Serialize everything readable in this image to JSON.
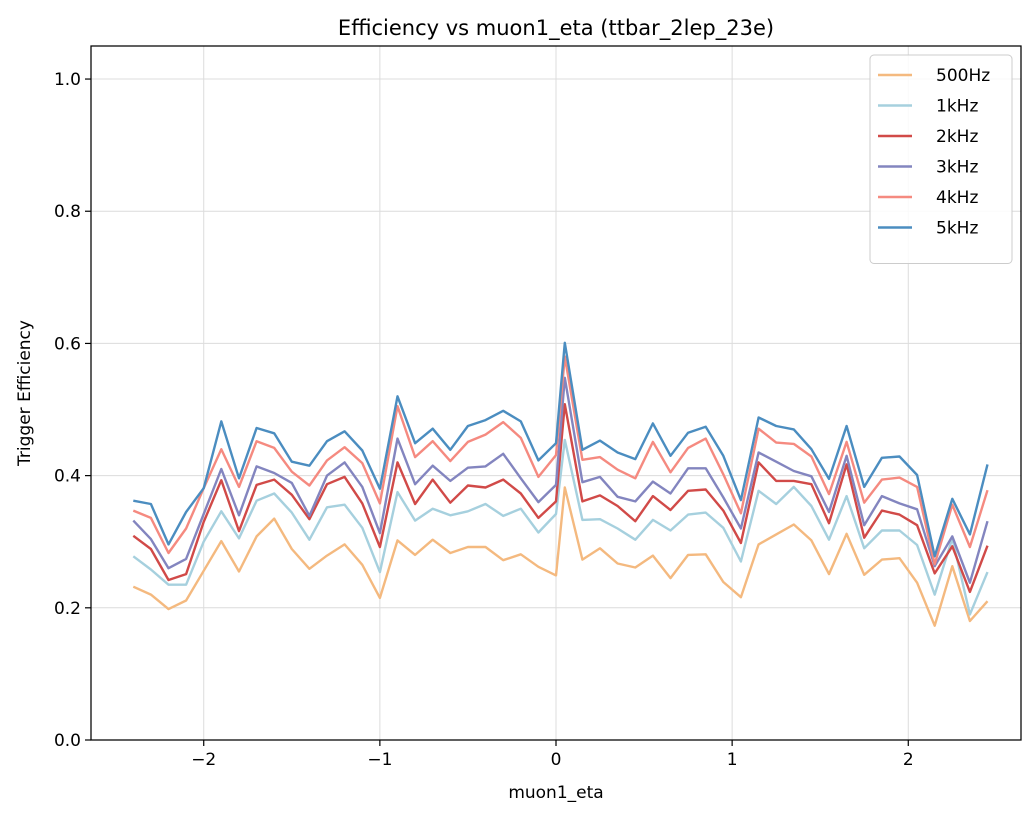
{
  "chart_data": {
    "type": "line",
    "title": "Efficiency vs muon1_eta (ttbar_2lep_23e)",
    "xlabel": "muon1_eta",
    "ylabel": "Trigger Efficiency",
    "xlim": [
      -2.64,
      2.64
    ],
    "ylim": [
      0,
      1.05
    ],
    "xticks": [
      -2,
      -1,
      0,
      1,
      2
    ],
    "xtick_labels": [
      "−2",
      "−1",
      "0",
      "1",
      "2"
    ],
    "yticks": [
      0.0,
      0.2,
      0.4,
      0.6,
      0.8,
      1.0
    ],
    "ytick_labels": [
      "0.0",
      "0.2",
      "0.4",
      "0.6",
      "0.8",
      "1.0"
    ],
    "grid": true,
    "legend_position": "top-right",
    "x": [
      -2.4,
      -2.3,
      -2.2,
      -2.1,
      -2.0,
      -1.9,
      -1.8,
      -1.7,
      -1.6,
      -1.5,
      -1.4,
      -1.3,
      -1.2,
      -1.1,
      -1.0,
      -0.9,
      -0.8,
      -0.7,
      -0.6,
      -0.5,
      -0.4,
      -0.3,
      -0.2,
      -0.1,
      0.0,
      0.05,
      0.15,
      0.25,
      0.35,
      0.45,
      0.55,
      0.65,
      0.75,
      0.85,
      0.95,
      1.05,
      1.15,
      1.25,
      1.35,
      1.45,
      1.55,
      1.65,
      1.75,
      1.85,
      1.95,
      2.05,
      2.15,
      2.25,
      2.35,
      2.45
    ],
    "series": [
      {
        "name": "500Hz",
        "color": "#f4b97f",
        "values": [
          0.232,
          0.22,
          0.198,
          0.211,
          0.256,
          0.301,
          0.255,
          0.308,
          0.335,
          0.289,
          0.259,
          0.279,
          0.296,
          0.265,
          0.215,
          0.302,
          0.28,
          0.303,
          0.283,
          0.292,
          0.292,
          0.272,
          0.281,
          0.262,
          0.249,
          0.382,
          0.273,
          0.29,
          0.267,
          0.261,
          0.279,
          0.245,
          0.28,
          0.281,
          0.239,
          0.216,
          0.296,
          0.311,
          0.326,
          0.302,
          0.251,
          0.312,
          0.25,
          0.273,
          0.275,
          0.238,
          0.173,
          0.263,
          0.18,
          0.21
        ]
      },
      {
        "name": "1kHz",
        "color": "#a6d0de",
        "values": [
          0.278,
          0.258,
          0.235,
          0.235,
          0.3,
          0.346,
          0.305,
          0.362,
          0.373,
          0.344,
          0.303,
          0.352,
          0.356,
          0.321,
          0.254,
          0.375,
          0.332,
          0.35,
          0.34,
          0.346,
          0.357,
          0.339,
          0.35,
          0.314,
          0.342,
          0.454,
          0.333,
          0.334,
          0.32,
          0.303,
          0.333,
          0.317,
          0.341,
          0.344,
          0.321,
          0.27,
          0.377,
          0.357,
          0.383,
          0.354,
          0.303,
          0.369,
          0.29,
          0.317,
          0.317,
          0.295,
          0.22,
          0.305,
          0.19,
          0.254
        ]
      },
      {
        "name": "2kHz",
        "color": "#d14a48",
        "values": [
          0.309,
          0.289,
          0.242,
          0.251,
          0.33,
          0.393,
          0.316,
          0.386,
          0.394,
          0.371,
          0.334,
          0.387,
          0.398,
          0.358,
          0.292,
          0.42,
          0.357,
          0.394,
          0.359,
          0.385,
          0.382,
          0.394,
          0.373,
          0.336,
          0.361,
          0.508,
          0.361,
          0.37,
          0.354,
          0.331,
          0.369,
          0.348,
          0.377,
          0.379,
          0.347,
          0.298,
          0.42,
          0.392,
          0.392,
          0.387,
          0.328,
          0.417,
          0.306,
          0.347,
          0.341,
          0.325,
          0.252,
          0.293,
          0.224,
          0.294
        ]
      },
      {
        "name": "3kHz",
        "color": "#8385bf",
        "values": [
          0.332,
          0.304,
          0.26,
          0.274,
          0.342,
          0.41,
          0.34,
          0.414,
          0.404,
          0.389,
          0.339,
          0.4,
          0.42,
          0.383,
          0.313,
          0.456,
          0.387,
          0.415,
          0.392,
          0.412,
          0.414,
          0.433,
          0.396,
          0.36,
          0.386,
          0.548,
          0.39,
          0.398,
          0.368,
          0.361,
          0.391,
          0.373,
          0.411,
          0.411,
          0.367,
          0.32,
          0.435,
          0.421,
          0.407,
          0.399,
          0.345,
          0.43,
          0.325,
          0.369,
          0.358,
          0.349,
          0.263,
          0.308,
          0.238,
          0.331
        ]
      },
      {
        "name": "4kHz",
        "color": "#f58a80",
        "values": [
          0.347,
          0.336,
          0.283,
          0.32,
          0.381,
          0.44,
          0.383,
          0.452,
          0.442,
          0.406,
          0.385,
          0.423,
          0.443,
          0.419,
          0.358,
          0.505,
          0.428,
          0.452,
          0.422,
          0.451,
          0.462,
          0.481,
          0.457,
          0.398,
          0.431,
          0.58,
          0.424,
          0.428,
          0.409,
          0.396,
          0.451,
          0.405,
          0.442,
          0.456,
          0.402,
          0.343,
          0.471,
          0.45,
          0.448,
          0.429,
          0.372,
          0.451,
          0.359,
          0.394,
          0.397,
          0.383,
          0.266,
          0.356,
          0.292,
          0.378
        ]
      },
      {
        "name": "5kHz",
        "color": "#4b8dc0",
        "values": [
          0.362,
          0.357,
          0.296,
          0.345,
          0.381,
          0.482,
          0.396,
          0.472,
          0.464,
          0.421,
          0.415,
          0.452,
          0.467,
          0.438,
          0.38,
          0.52,
          0.449,
          0.471,
          0.439,
          0.475,
          0.484,
          0.498,
          0.482,
          0.423,
          0.449,
          0.601,
          0.439,
          0.453,
          0.435,
          0.425,
          0.479,
          0.43,
          0.465,
          0.474,
          0.43,
          0.363,
          0.488,
          0.475,
          0.47,
          0.44,
          0.395,
          0.475,
          0.383,
          0.427,
          0.429,
          0.401,
          0.278,
          0.365,
          0.311,
          0.417
        ]
      }
    ]
  }
}
